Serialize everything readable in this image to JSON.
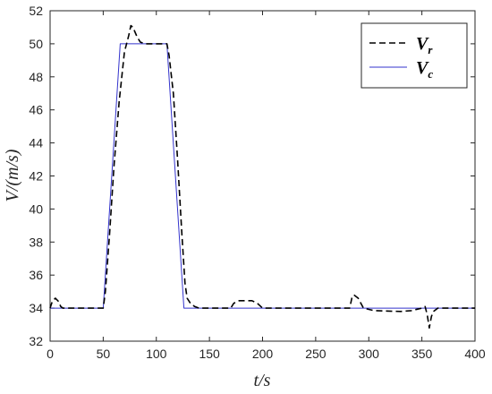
{
  "chart_data": {
    "type": "line",
    "xlabel": "t/s",
    "ylabel": "V/(m/s)",
    "xlim": [
      0,
      400
    ],
    "ylim": [
      32,
      52
    ],
    "xticks": [
      "0",
      "50",
      "100",
      "150",
      "200",
      "250",
      "300",
      "350",
      "400"
    ],
    "yticks": [
      "32",
      "34",
      "36",
      "38",
      "40",
      "42",
      "44",
      "46",
      "48",
      "50",
      "52"
    ],
    "grid": false,
    "legend_position": "top-right",
    "series": [
      {
        "name": "Vr",
        "name_main": "V",
        "name_sub": "r",
        "color": "#000000",
        "style": "dashed",
        "x": [
          0,
          2,
          5,
          8,
          10,
          12,
          15,
          50,
          52,
          56,
          60,
          65,
          70,
          74,
          76,
          78,
          80,
          82,
          85,
          90,
          100,
          110,
          112,
          116,
          120,
          124,
          127,
          129,
          132,
          136,
          140,
          150,
          170,
          173,
          178,
          190,
          195,
          200,
          250,
          282,
          284,
          286,
          290,
          295,
          305,
          330,
          340,
          350,
          353,
          355,
          357,
          359,
          361,
          365,
          370,
          400
        ],
        "y": [
          34,
          34.4,
          34.6,
          34.4,
          34.1,
          34,
          34,
          34,
          35,
          38.5,
          42.5,
          46.5,
          49.5,
          50.5,
          51.1,
          51,
          50.7,
          50.4,
          50.1,
          50,
          50,
          50,
          49.3,
          47,
          43,
          38.5,
          35.5,
          34.6,
          34.3,
          34.1,
          34,
          34,
          34,
          34.3,
          34.45,
          34.45,
          34.3,
          34,
          34,
          34,
          34.6,
          34.8,
          34.6,
          34,
          33.85,
          33.8,
          33.85,
          34,
          34.1,
          33.6,
          32.8,
          33.5,
          33.8,
          34,
          34,
          34
        ]
      },
      {
        "name": "Vc",
        "name_main": "V",
        "name_sub": "c",
        "color": "#3333cc",
        "style": "solid",
        "x": [
          0,
          50,
          66,
          110,
          126,
          400
        ],
        "y": [
          34,
          34,
          50,
          50,
          34,
          34
        ]
      }
    ]
  }
}
